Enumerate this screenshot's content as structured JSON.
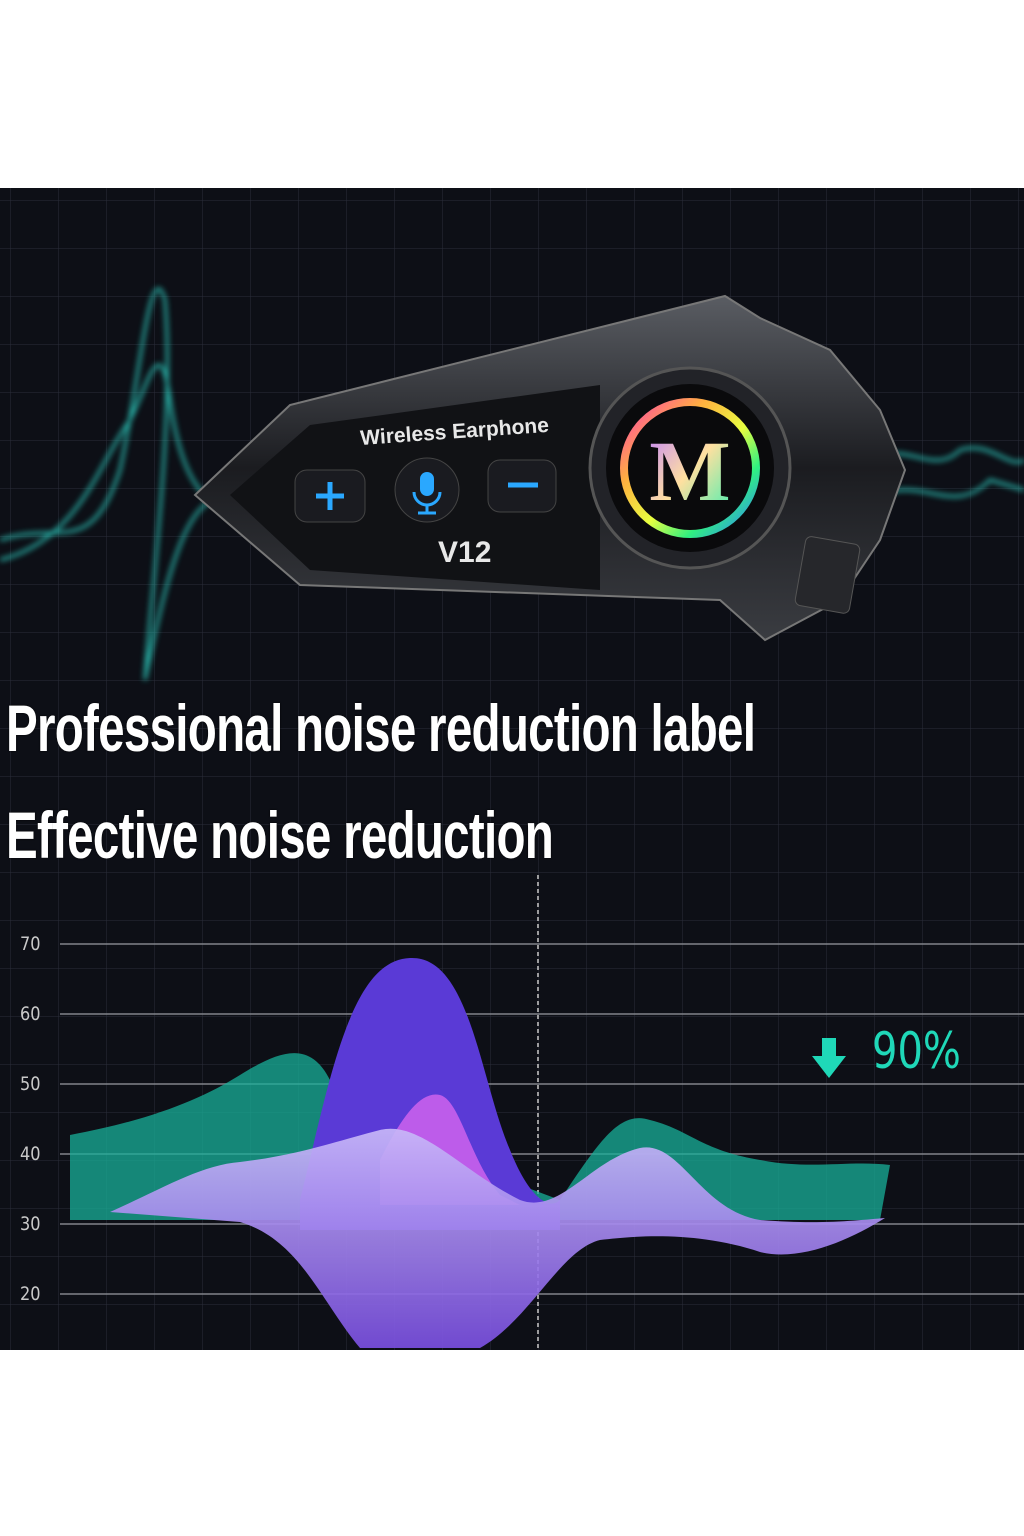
{
  "product": {
    "label": "Wireless Earphone",
    "model": "V12",
    "logo_letter": "M",
    "buttons": [
      "plus",
      "mic",
      "minus"
    ]
  },
  "headline": {
    "line1": "Professional noise reduction label",
    "line2": "Effective noise reduction"
  },
  "chart": {
    "y_ticks": [
      "70",
      "60",
      "50",
      "40",
      "30",
      "20"
    ],
    "reduction_label": "90%",
    "reduction_icon": "arrow-down-icon"
  },
  "colors": {
    "background": "#0d0f16",
    "teal": "#1fd8b8",
    "purple": "#5b3fd8",
    "magenta": "#c25ef0",
    "lavender": "#a78bf0"
  }
}
